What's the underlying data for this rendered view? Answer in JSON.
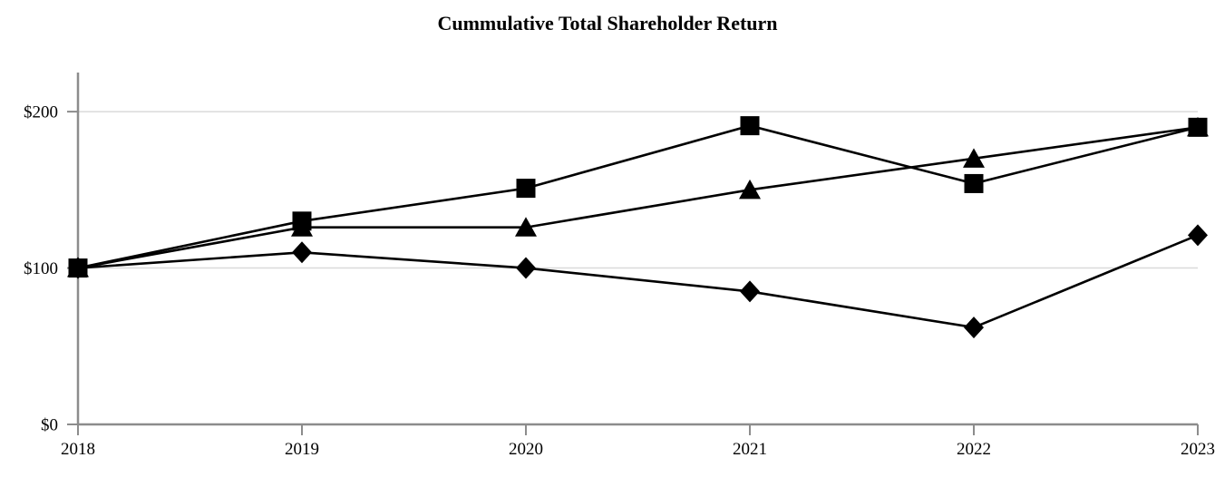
{
  "chart_data": {
    "type": "line",
    "title": "Cummulative Total Shareholder Return",
    "xlabel": "",
    "ylabel": "",
    "categories": [
      "2018",
      "2019",
      "2020",
      "2021",
      "2022",
      "2023"
    ],
    "series": [
      {
        "name": "series-diamond",
        "marker": "diamond",
        "color": "#000000",
        "values": [
          100,
          110,
          100,
          85,
          62,
          121
        ]
      },
      {
        "name": "series-triangle",
        "marker": "triangle",
        "color": "#000000",
        "values": [
          100,
          126,
          126,
          150,
          170,
          190
        ]
      },
      {
        "name": "series-square",
        "marker": "square",
        "color": "#000000",
        "values": [
          100,
          130,
          151,
          191,
          154,
          190
        ]
      }
    ],
    "y_ticks": [
      0,
      100,
      200
    ],
    "y_tick_labels": [
      "$0",
      "$100",
      "$200"
    ],
    "ylim": [
      0,
      225
    ],
    "grid": "horizontal-at-100-and-200",
    "legend": "none",
    "axis_color": "#8c8c8c",
    "gridline_color": "#dadada",
    "line_color": "#000000",
    "currency_prefix": "$"
  }
}
